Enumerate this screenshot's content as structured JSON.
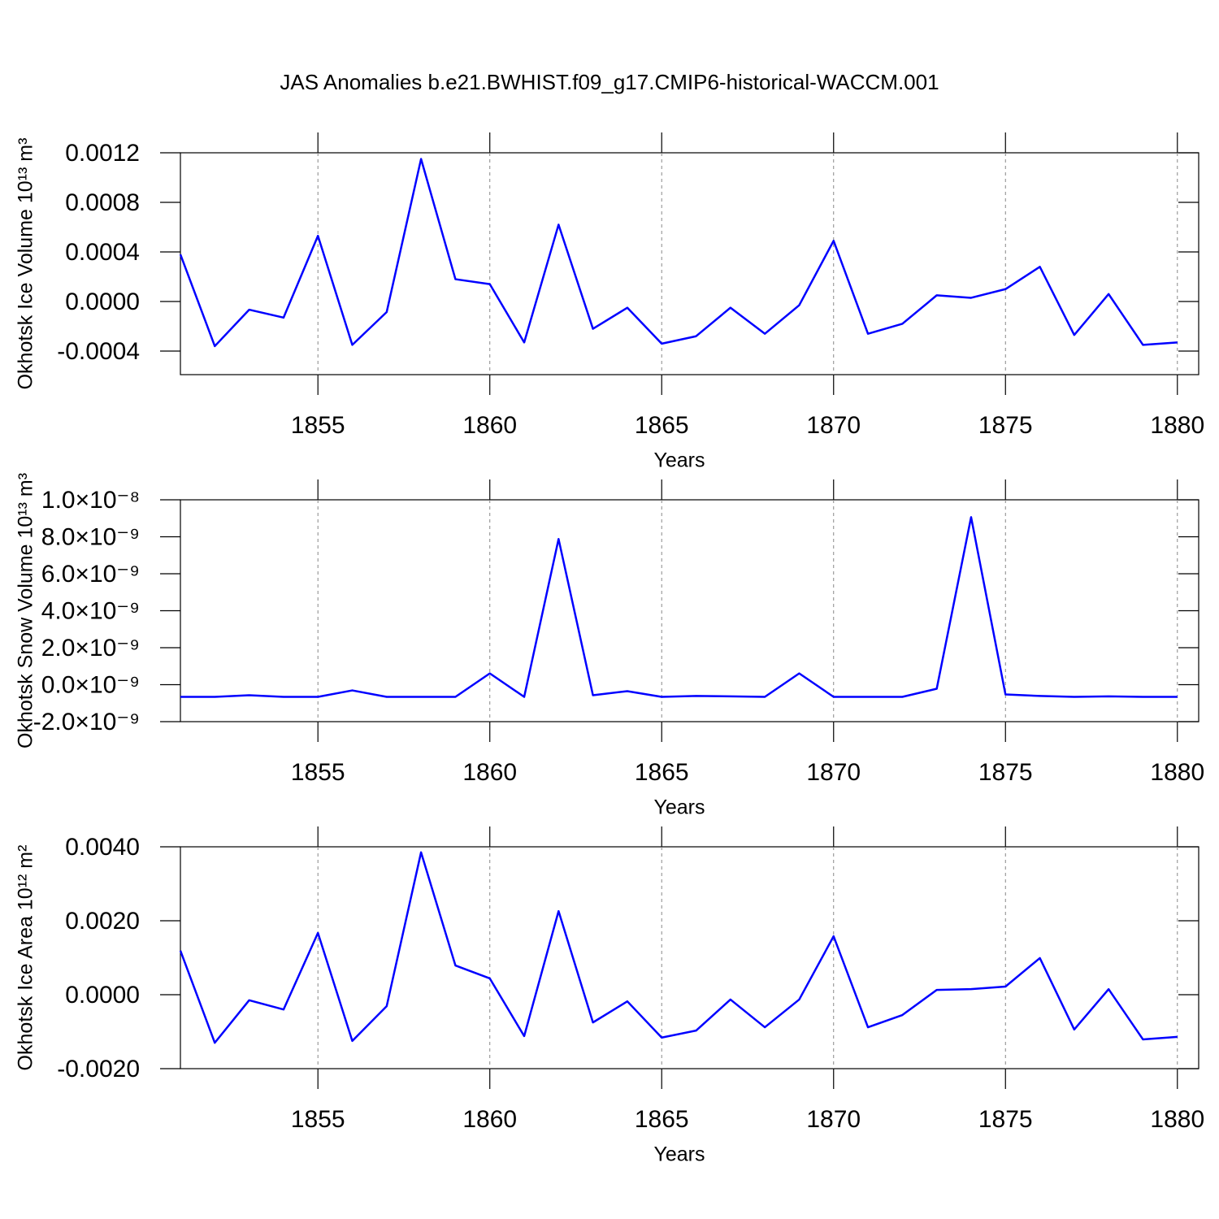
{
  "title": "JAS Anomalies b.e21.BWHIST.f09_g17.CMIP6-historical-WACCM.001",
  "chart_data": [
    {
      "type": "line",
      "ylabel": "Okhotsk Ice Volume 10¹³ m³",
      "xlabel": "Years",
      "color": "#0000ff",
      "xgrid": true,
      "x": [
        1851,
        1852,
        1853,
        1854,
        1855,
        1856,
        1857,
        1858,
        1859,
        1860,
        1861,
        1862,
        1863,
        1864,
        1865,
        1866,
        1867,
        1868,
        1869,
        1870,
        1871,
        1872,
        1873,
        1874,
        1875,
        1876,
        1877,
        1878,
        1879,
        1880
      ],
      "values": [
        0.00038,
        -0.00036,
        -6.6e-05,
        -0.00013,
        0.00053,
        -0.00035,
        -8.5e-05,
        0.00115,
        0.00018,
        0.00014,
        -0.00033,
        0.00062,
        -0.00022,
        -5e-05,
        -0.00034,
        -0.00028,
        -5e-05,
        -0.00026,
        -3e-05,
        0.00049,
        -0.00026,
        -0.00018,
        5e-05,
        3e-05,
        0.0001,
        0.00028,
        -0.00027,
        6e-05,
        -0.00035,
        -0.00033
      ],
      "xlim": [
        1851,
        1880.62
      ],
      "xticks": [
        1855,
        1860,
        1865,
        1870,
        1875,
        1880
      ],
      "ylim": [
        -0.00059,
        0.0012
      ],
      "yticks": [
        0.0012,
        0.0008,
        0.0004,
        {
          "value": 0,
          "label": "0.0000"
        },
        -0.0004
      ]
    },
    {
      "type": "line",
      "ylabel": "Okhotsk Snow Volume 10¹³ m³",
      "xlabel": "Years",
      "color": "#0000ff",
      "xgrid": true,
      "x": [
        1851,
        1852,
        1853,
        1854,
        1855,
        1856,
        1857,
        1858,
        1859,
        1860,
        1861,
        1862,
        1863,
        1864,
        1865,
        1866,
        1867,
        1868,
        1869,
        1870,
        1871,
        1872,
        1873,
        1874,
        1875,
        1876,
        1877,
        1878,
        1879,
        1880
      ],
      "values": [
        -6.6e-10,
        -6.6e-10,
        -5.7e-10,
        -6.6e-10,
        -6.6e-10,
        -3.1e-10,
        -6.6e-10,
        -6.6e-10,
        -6.6e-10,
        6.1e-10,
        -6.6e-10,
        7.88e-09,
        -5.7e-10,
        -3.5e-10,
        -6.6e-10,
        -6.1e-10,
        -6.3e-10,
        -6.6e-10,
        6.1e-10,
        -6.6e-10,
        -6.6e-10,
        -6.6e-10,
        -2.2e-10,
        9.06e-09,
        -5.3e-10,
        -6.1e-10,
        -6.6e-10,
        -6.3e-10,
        -6.6e-10,
        -6.6e-10
      ],
      "xlim": [
        1851,
        1880.62
      ],
      "xticks": [
        1855,
        1860,
        1865,
        1870,
        1875,
        1880
      ],
      "ylim": [
        -2e-09,
        1e-08
      ],
      "yticks": [
        {
          "value": 1e-08,
          "label": "1.0×10⁻⁸"
        },
        {
          "value": 8e-09,
          "label": "8.0×10⁻⁹"
        },
        {
          "value": 6e-09,
          "label": "6.0×10⁻⁹"
        },
        {
          "value": 4e-09,
          "label": "4.0×10⁻⁹"
        },
        {
          "value": 2e-09,
          "label": "2.0×10⁻⁹"
        },
        {
          "value": 0,
          "label": "0.0×10⁻⁹"
        },
        {
          "value": -2e-09,
          "label": "-2.0×10⁻⁹"
        }
      ]
    },
    {
      "type": "line",
      "ylabel": "Okhotsk Ice Area 10¹² m²",
      "xlabel": "Years",
      "color": "#0000ff",
      "xgrid": true,
      "x": [
        1851,
        1852,
        1853,
        1854,
        1855,
        1856,
        1857,
        1858,
        1859,
        1860,
        1861,
        1862,
        1863,
        1864,
        1865,
        1866,
        1867,
        1868,
        1869,
        1870,
        1871,
        1872,
        1873,
        1874,
        1875,
        1876,
        1877,
        1878,
        1879,
        1880
      ],
      "values": [
        0.00119,
        -0.0013,
        -0.00015,
        -0.0004,
        0.00167,
        -0.00125,
        -0.00031,
        0.00385,
        0.00079,
        0.00044,
        -0.00112,
        0.00226,
        -0.00075,
        -0.00018,
        -0.00116,
        -0.00097,
        -0.00013,
        -0.00088,
        -0.00013,
        0.00158,
        -0.00088,
        -0.00055,
        0.00013,
        0.00015,
        0.00022,
        0.00099,
        -0.00094,
        0.00015,
        -0.00121,
        -0.00114
      ],
      "xlim": [
        1851,
        1880.62
      ],
      "xticks": [
        1855,
        1860,
        1865,
        1870,
        1875,
        1880
      ],
      "ylim": [
        -0.002,
        0.004
      ],
      "yticks": [
        {
          "value": 0.004,
          "label": "0.0040"
        },
        {
          "value": 0.002,
          "label": "0.0020"
        },
        {
          "value": 0,
          "label": "0.0000"
        },
        {
          "value": -0.002,
          "label": "-0.0020"
        }
      ]
    }
  ]
}
